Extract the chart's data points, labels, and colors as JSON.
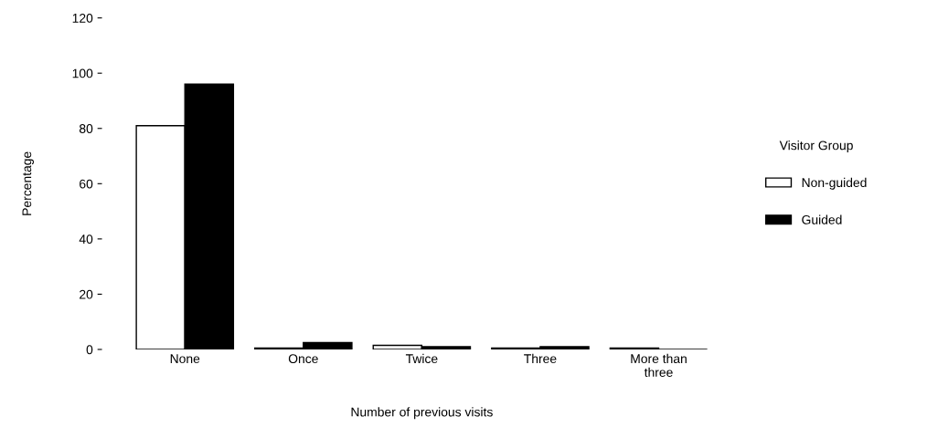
{
  "chart_data": {
    "type": "bar",
    "xlabel": "Number of previous visits",
    "ylabel": "Percentage",
    "legend_title": "Visitor Group",
    "categories": [
      "None",
      "Once",
      "Twice",
      "Three",
      "More than\nthree"
    ],
    "series": [
      {
        "name": "Non-guided",
        "color": "#ffffff",
        "values": [
          81,
          0.5,
          1.5,
          0.5,
          0.5
        ]
      },
      {
        "name": "Guided",
        "color": "#000000",
        "values": [
          96,
          2.5,
          1,
          1,
          0
        ]
      }
    ],
    "ylim": [
      0,
      120
    ],
    "yticks": [
      0,
      20,
      40,
      60,
      80,
      100,
      120
    ],
    "grid": false,
    "legend": "right"
  }
}
